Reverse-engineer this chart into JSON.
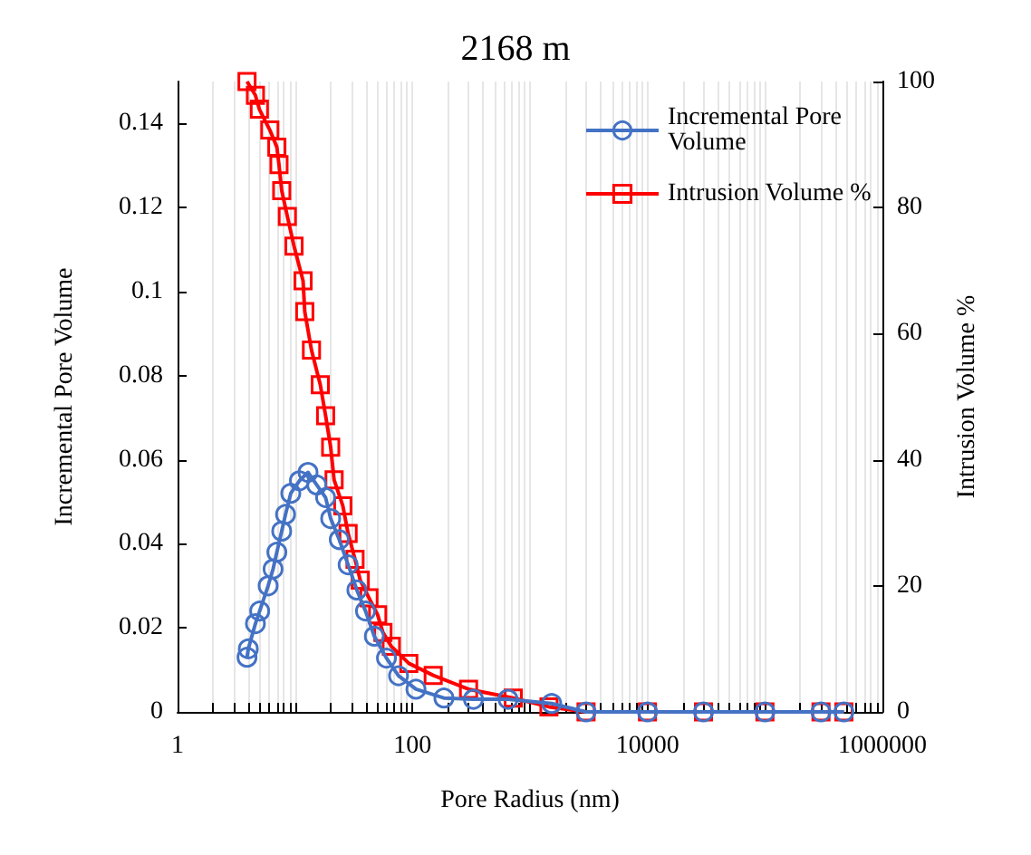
{
  "chart_data": {
    "type": "line",
    "title": "2168 m",
    "xlabel": "Pore Radius (nm)",
    "ylabel": "Incremental Pore Volume",
    "y2label": "Intrusion Volume %",
    "log": "x",
    "grid": "x",
    "legend": "top right",
    "line_style": "solid",
    "xlim": [
      1,
      1000000
    ],
    "xticks": [
      1,
      100,
      10000,
      1000000
    ],
    "ylim": [
      0,
      0.15
    ],
    "yticks": [
      0,
      0.02,
      0.04,
      0.06,
      0.08,
      0.1,
      0.12,
      0.14
    ],
    "y2lim": [
      0,
      100
    ],
    "y2ticks": [
      0,
      20,
      40,
      60,
      80,
      100
    ],
    "series": [
      {
        "name": "Incremental Pore Volume",
        "color": "#4472c4",
        "marker": "circle",
        "x": [
          3.9,
          4.0,
          4.6,
          5.0,
          5.9,
          6.5,
          7.0,
          7.7,
          8.3,
          9.2,
          10.9,
          12.9,
          15.3,
          18.2,
          20.1,
          23.8,
          28.3,
          33.6,
          39.8,
          47.3,
          60,
          76,
          107,
          185,
          330,
          650,
          1530,
          3000,
          10000,
          30000,
          100000,
          300000,
          470000
        ],
        "values": [
          0.013,
          0.015,
          0.021,
          0.024,
          0.03,
          0.034,
          0.038,
          0.043,
          0.047,
          0.052,
          0.055,
          0.057,
          0.054,
          0.051,
          0.046,
          0.041,
          0.035,
          0.029,
          0.024,
          0.018,
          0.0128,
          0.0086,
          0.0054,
          0.0033,
          0.003,
          0.003,
          0.002,
          0,
          0,
          0,
          0,
          0,
          0
        ]
      },
      {
        "name": "Intrusion Volume %",
        "color": "#ff0000",
        "marker": "square",
        "axis": "y2",
        "x": [
          3.9,
          4.6,
          4.97,
          6.1,
          7.0,
          7.3,
          7.7,
          8.6,
          9.8,
          11.7,
          12.1,
          13.8,
          16.4,
          18.2,
          20.1,
          21.5,
          25.5,
          28.3,
          32.4,
          35.9,
          42.6,
          50.5,
          56,
          66,
          93,
          150,
          300,
          720,
          1450,
          3000,
          10000,
          30000,
          100000,
          300000,
          470000
        ],
        "values": [
          100,
          97.8,
          95.6,
          92.3,
          89.6,
          86.8,
          82.7,
          78.6,
          73.9,
          68.4,
          63.5,
          57.4,
          51.9,
          47,
          42,
          36.8,
          32.7,
          28.3,
          24.2,
          20.9,
          18.1,
          15.4,
          12.6,
          10.4,
          7.7,
          5.8,
          3.6,
          2.2,
          0.8,
          0,
          0,
          0,
          0,
          0,
          0
        ]
      }
    ]
  }
}
